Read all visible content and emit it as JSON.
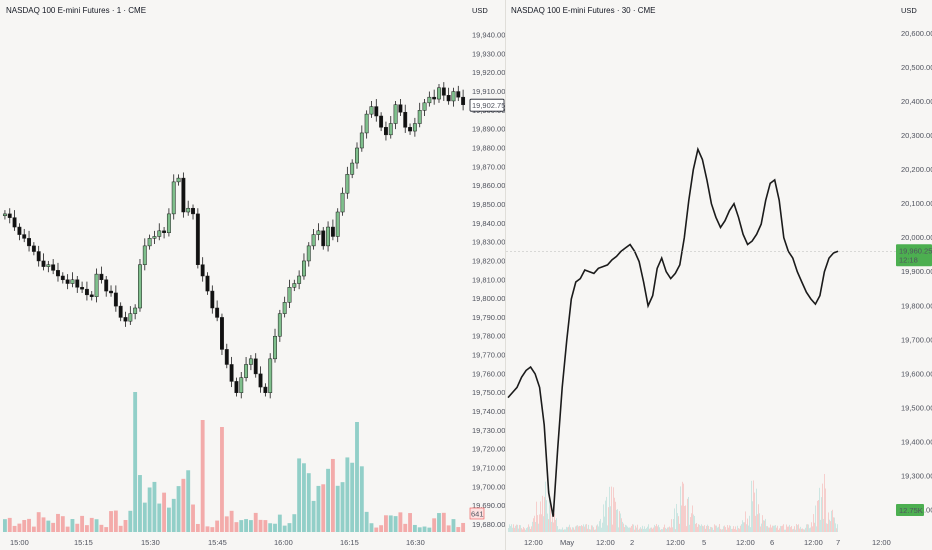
{
  "chart_data": [
    {
      "type": "candlestick",
      "title": "NASDAQ 100 E-mini Futures · 1 · CME",
      "currency": "USD",
      "y_ticks": [
        "19,940.00",
        "19,930.00",
        "19,920.00",
        "19,910.00",
        "19,900.00",
        "19,890.00",
        "19,880.00",
        "19,870.00",
        "19,860.00",
        "19,850.00",
        "19,840.00",
        "19,830.00",
        "19,820.00",
        "19,810.00",
        "19,800.00",
        "19,790.00",
        "19,780.00",
        "19,770.00",
        "19,760.00",
        "19,750.00",
        "19,740.00",
        "19,730.00",
        "19,720.00",
        "19,710.00",
        "19,700.00",
        "19,690.00",
        "19,680.00"
      ],
      "y_tick_values": [
        19940,
        19930,
        19920,
        19910,
        19900,
        19890,
        19880,
        19870,
        19860,
        19850,
        19840,
        19830,
        19820,
        19810,
        19800,
        19790,
        19780,
        19770,
        19760,
        19750,
        19740,
        19730,
        19720,
        19710,
        19700,
        19690,
        19680
      ],
      "ylim": [
        19676,
        19948
      ],
      "x_ticks": [
        "15:00",
        "15:15",
        "15:30",
        "15:45",
        "16:00",
        "16:15",
        "16:30"
      ],
      "price_series": [
        19845,
        19843,
        19838,
        19834,
        19832,
        19828,
        19825,
        19820,
        19817,
        19818,
        19815,
        19812,
        19810,
        19808,
        19810,
        19806,
        19805,
        19802,
        19801,
        19813,
        19810,
        19804,
        19803,
        19796,
        19790,
        19788,
        19792,
        19795,
        19818,
        19828,
        19832,
        19833,
        19836,
        19835,
        19845,
        19862,
        19864,
        19846,
        19848,
        19845,
        19818,
        19812,
        19804,
        19795,
        19790,
        19773,
        19765,
        19756,
        19750,
        19758,
        19765,
        19768,
        19760,
        19753,
        19750,
        19768,
        19780,
        19792,
        19798,
        19806,
        19808,
        19812,
        19820,
        19828,
        19834,
        19836,
        19828,
        19838,
        19833,
        19846,
        19856,
        19866,
        19872,
        19880,
        19888,
        19898,
        19902,
        19897,
        19891,
        19887,
        19893,
        19903,
        19899,
        19891,
        19889,
        19893,
        19900,
        19904,
        19907,
        19906,
        19912,
        19908,
        19905,
        19910,
        19907,
        19903
      ],
      "volume_max_label": "",
      "last_price_label": "19,902.75",
      "last_volume_label": "641"
    },
    {
      "type": "line",
      "title": "NASDAQ 100 E-mini Futures · 30 · CME",
      "currency": "USD",
      "y_ticks": [
        "20,600.00",
        "20,500.00",
        "20,400.00",
        "20,300.00",
        "20,200.00",
        "20,100.00",
        "20,000.00",
        "19,900.00",
        "19,800.00",
        "19,700.00",
        "19,600.00",
        "19,500.00",
        "19,400.00",
        "19,300.00",
        "19,200.00"
      ],
      "y_tick_values": [
        20600,
        20500,
        20400,
        20300,
        20200,
        20100,
        20000,
        19900,
        19800,
        19700,
        19600,
        19500,
        19400,
        19300,
        19200
      ],
      "ylim": [
        19135,
        20640
      ],
      "x_ticks": [
        "12:00",
        "May",
        "12:00",
        "2",
        "12:00",
        "5",
        "12:00",
        "6",
        "12:00",
        "7",
        "12:00"
      ],
      "price_series": [
        19530,
        19545,
        19560,
        19590,
        19610,
        19620,
        19600,
        19560,
        19450,
        19250,
        19180,
        19380,
        19560,
        19700,
        19820,
        19870,
        19880,
        19905,
        19900,
        19895,
        19910,
        19915,
        19920,
        19935,
        19945,
        19960,
        19970,
        19980,
        19960,
        19930,
        19870,
        19800,
        19830,
        19910,
        19940,
        19900,
        19880,
        19895,
        19920,
        20000,
        20110,
        20200,
        20260,
        20230,
        20170,
        20100,
        20060,
        20030,
        20050,
        20080,
        20100,
        20060,
        20010,
        19980,
        19990,
        20010,
        20040,
        20110,
        20160,
        20170,
        20110,
        20000,
        19960,
        19940,
        19900,
        19870,
        19840,
        19820,
        19805,
        19830,
        19900,
        19940,
        19955,
        19960
      ],
      "last_price_label": "19,960.25",
      "countdown_label": "12:18",
      "last_volume_label": "12.75K"
    }
  ]
}
